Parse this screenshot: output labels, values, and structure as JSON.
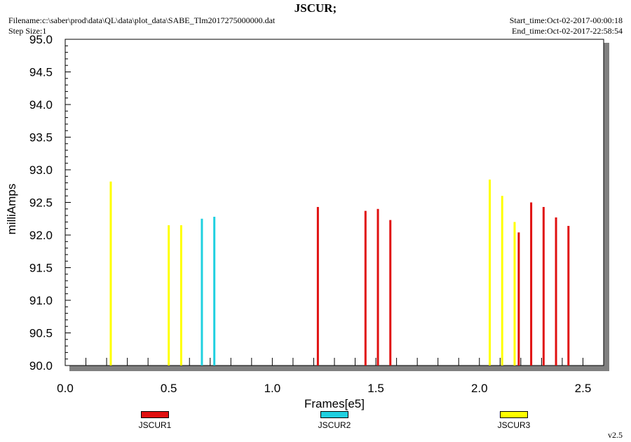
{
  "header": {
    "title": "JSCUR;",
    "filename": "Filename:c:\\saber\\prod\\data\\QL\\data\\plot_data\\SABE_Tlm2017275000000.dat",
    "step_size": "Step Size:1",
    "start_time": "Start_time:Oct-02-2017-00:00:18",
    "end_time": "End_time:Oct-02-2017-22:58:54"
  },
  "version": "v2.5",
  "chart_data": {
    "type": "bar",
    "title": "JSCUR;",
    "xlabel": "Frames[e5]",
    "ylabel": "milliAmps",
    "xlim": [
      0.0,
      2.6
    ],
    "ylim": [
      90.0,
      95.0
    ],
    "xticks": [
      "0.0",
      "0.5",
      "1.0",
      "1.5",
      "2.0",
      "2.5"
    ],
    "xtick_values": [
      0.0,
      0.5,
      1.0,
      1.5,
      2.0,
      2.5
    ],
    "yticks": [
      "90.0",
      "90.5",
      "91.0",
      "91.5",
      "92.0",
      "92.5",
      "93.0",
      "93.5",
      "94.0",
      "94.5",
      "95.0"
    ],
    "ytick_values": [
      90.0,
      90.5,
      91.0,
      91.5,
      92.0,
      92.5,
      93.0,
      93.5,
      94.0,
      94.5,
      95.0
    ],
    "grid": false,
    "legend_position": "bottom",
    "series": [
      {
        "name": "JSCUR1",
        "color": "#e01010",
        "x": [
          1.22,
          1.45,
          1.51,
          1.57,
          2.19,
          2.25,
          2.31,
          2.37,
          2.43
        ],
        "y": [
          92.43,
          92.37,
          92.4,
          92.23,
          92.04,
          92.5,
          92.43,
          92.27,
          92.14
        ]
      },
      {
        "name": "JSCUR2",
        "color": "#20d0e0",
        "x": [
          0.66,
          0.72
        ],
        "y": [
          92.25,
          92.28
        ]
      },
      {
        "name": "JSCUR3",
        "color": "#ffff00",
        "x": [
          0.22,
          0.5,
          0.56,
          2.05,
          2.11,
          2.17
        ],
        "y": [
          92.82,
          92.15,
          92.15,
          92.85,
          92.6,
          92.2
        ]
      }
    ]
  }
}
